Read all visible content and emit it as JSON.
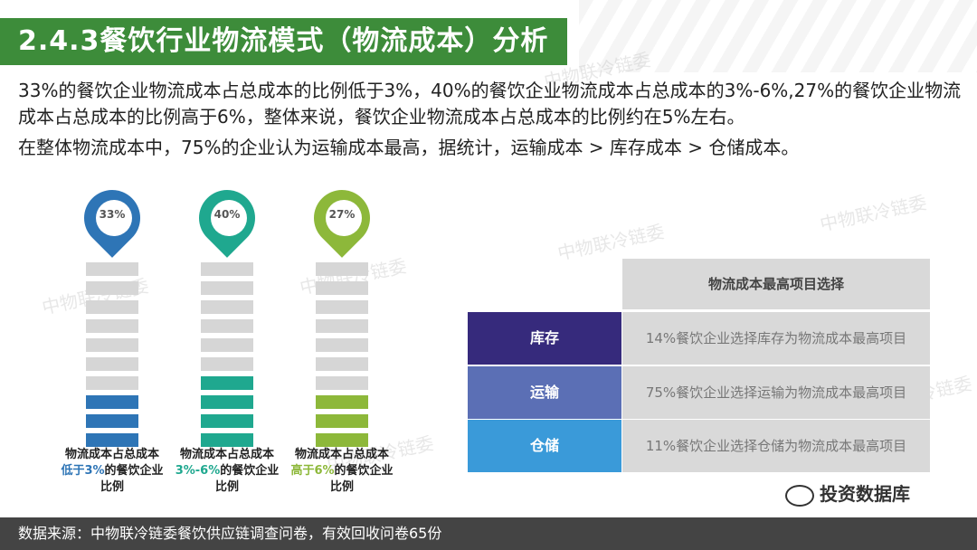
{
  "title": "2.4.3餐饮行业物流模式（物流成本）分析",
  "paragraphs": [
    "33%的餐饮企业物流成本占总成本的比例低于3%，40%的餐饮企业物流成本占总成本的3%-6%,27%的餐饮企业物流成本占总成本的比例高于6%，整体来说，餐饮企业物流成本占总成本的比例约在5%左右。",
    "在整体物流成本中，75%的企业认为运输成本最高，据统计，运输成本 > 库存成本 > 仓储成本。"
  ],
  "watermark_text": "中物联冷链委",
  "pins": [
    {
      "percent": "33%",
      "value": 0.33,
      "color": "#2e75b6",
      "caption_pre": "物流成本占总成本",
      "caption_em": "低于3%",
      "caption_post": "的餐饮企业比例"
    },
    {
      "percent": "40%",
      "value": 0.4,
      "color": "#1fa88f",
      "caption_pre": "物流成本占总成本",
      "caption_em": "3%-6%",
      "caption_post": "的餐饮企业比例"
    },
    {
      "percent": "27%",
      "value": 0.27,
      "color": "#8db83a",
      "caption_pre": "物流成本占总成本",
      "caption_em": "高于6%",
      "caption_post": "的餐饮企业比例"
    }
  ],
  "table": {
    "header": "物流成本最高项目选择",
    "rows": [
      {
        "label": "库存",
        "text": "14%餐饮企业选择库存为物流成本最高项目",
        "color": "#362a7c"
      },
      {
        "label": "运输",
        "text": "75%餐饮企业选择运输为物流成本最高项目",
        "color": "#5b6fb5"
      },
      {
        "label": "仓储",
        "text": "11%餐饮企业选择仓储为物流成本最高项目",
        "color": "#3a9ad9"
      }
    ]
  },
  "footer": "数据来源：中物联冷链委餐饮供应链调查问卷，有效回收问卷65份",
  "brand": "投资数据库"
}
